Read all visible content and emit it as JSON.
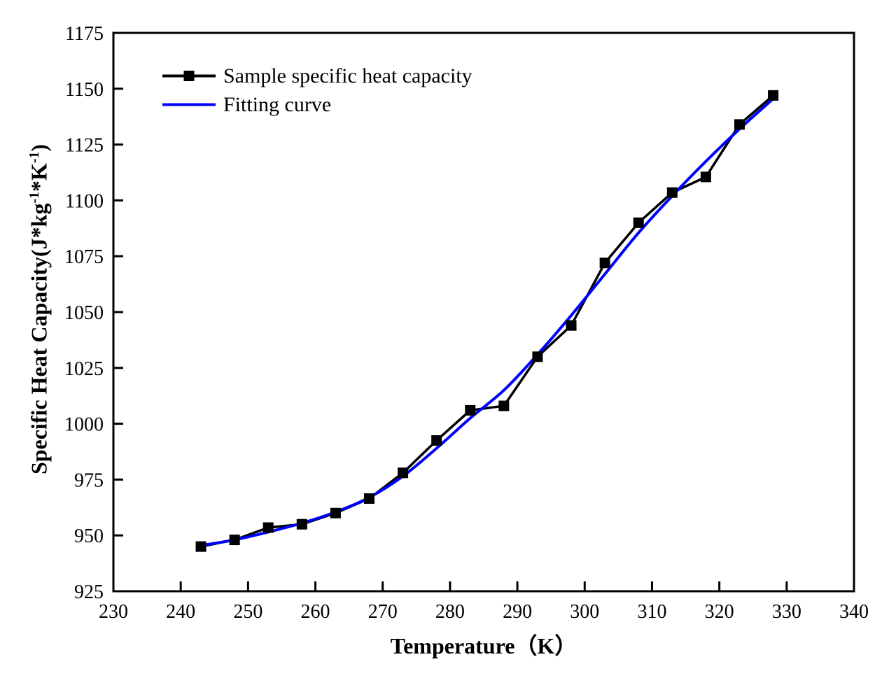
{
  "chart_data": {
    "type": "line",
    "title": "",
    "xlabel": "Temperature（K）",
    "ylabel": "Specific Heat Capacity(J*kg⁻¹*K⁻¹)",
    "ylabel_segments": [
      {
        "text": "Specific Heat Capacity(J*kg",
        "sup": false
      },
      {
        "text": "-1",
        "sup": true
      },
      {
        "text": "*K",
        "sup": false
      },
      {
        "text": "-1",
        "sup": true
      },
      {
        "text": ")",
        "sup": false
      }
    ],
    "xlim": [
      230,
      340
    ],
    "ylim": [
      925,
      1175
    ],
    "x_ticks": [
      230,
      240,
      250,
      260,
      270,
      280,
      290,
      300,
      310,
      320,
      330,
      340
    ],
    "y_ticks": [
      925,
      950,
      975,
      1000,
      1025,
      1050,
      1075,
      1100,
      1125,
      1150,
      1175
    ],
    "grid": false,
    "legend_position": "top-left",
    "axis_color": "#000000",
    "x": [
      243,
      248,
      253,
      258,
      263,
      268,
      273,
      278,
      283,
      288,
      293,
      298,
      303,
      308,
      313,
      318,
      323,
      328
    ],
    "series": [
      {
        "name": "Sample specific heat capacity",
        "type": "line+marker",
        "marker": "filled-square",
        "color": "#000000",
        "values": [
          945,
          948,
          953.5,
          955,
          960,
          966.5,
          978,
          992.5,
          1006,
          1008,
          1030,
          1044,
          1072,
          1090,
          1103.5,
          1110.5,
          1134,
          1147
        ]
      },
      {
        "name": "Fitting curve",
        "type": "smooth-line",
        "marker": "none",
        "color": "#0000fe",
        "values": [
          945.5,
          948,
          951.5,
          955.5,
          960.5,
          967,
          976.5,
          989,
          1002.5,
          1015,
          1031,
          1048.5,
          1067,
          1085.5,
          1102,
          1117.5,
          1132,
          1145.5
        ]
      }
    ]
  }
}
